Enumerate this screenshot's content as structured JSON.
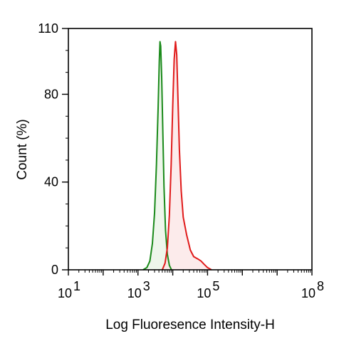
{
  "chart_data": {
    "type": "area",
    "title": "",
    "xlabel": "Log Fluoresence Intensity-H",
    "ylabel": "Count (%)",
    "xscale": "log",
    "xlim": [
      10,
      100000000
    ],
    "ylim": [
      0,
      110
    ],
    "x_ticks": [
      {
        "base": "10",
        "exp": "1",
        "value": 10
      },
      {
        "base": "10",
        "exp": "3",
        "value": 1000
      },
      {
        "base": "10",
        "exp": "5",
        "value": 100000
      },
      {
        "base": "10",
        "exp": "8",
        "value": 100000000
      }
    ],
    "y_ticks": [
      0,
      40,
      80,
      110
    ],
    "grid": false,
    "legend": "none",
    "series": [
      {
        "color": "#1a8a1a",
        "fill": "#e8f3e4",
        "points": [
          [
            1400,
            0
          ],
          [
            1800,
            1
          ],
          [
            2200,
            4
          ],
          [
            2600,
            12
          ],
          [
            3000,
            26
          ],
          [
            3400,
            48
          ],
          [
            3800,
            74
          ],
          [
            4100,
            95
          ],
          [
            4300,
            104
          ],
          [
            4500,
            102
          ],
          [
            4800,
            88
          ],
          [
            5200,
            62
          ],
          [
            5600,
            38
          ],
          [
            6200,
            18
          ],
          [
            7000,
            7
          ],
          [
            8000,
            2
          ],
          [
            9200,
            0
          ]
        ]
      },
      {
        "color": "#e01a1a",
        "fill": "#fbe4e4",
        "points": [
          [
            5000,
            0
          ],
          [
            6000,
            3
          ],
          [
            7000,
            10
          ],
          [
            8000,
            25
          ],
          [
            9000,
            48
          ],
          [
            10000,
            75
          ],
          [
            11000,
            96
          ],
          [
            12000,
            104
          ],
          [
            13000,
            98
          ],
          [
            14000,
            80
          ],
          [
            15500,
            55
          ],
          [
            17500,
            36
          ],
          [
            20000,
            24
          ],
          [
            25000,
            16
          ],
          [
            32000,
            9
          ],
          [
            40000,
            6
          ],
          [
            52000,
            5
          ],
          [
            65000,
            4
          ],
          [
            80000,
            2.5
          ],
          [
            100000,
            1
          ],
          [
            130000,
            0
          ]
        ]
      }
    ]
  }
}
